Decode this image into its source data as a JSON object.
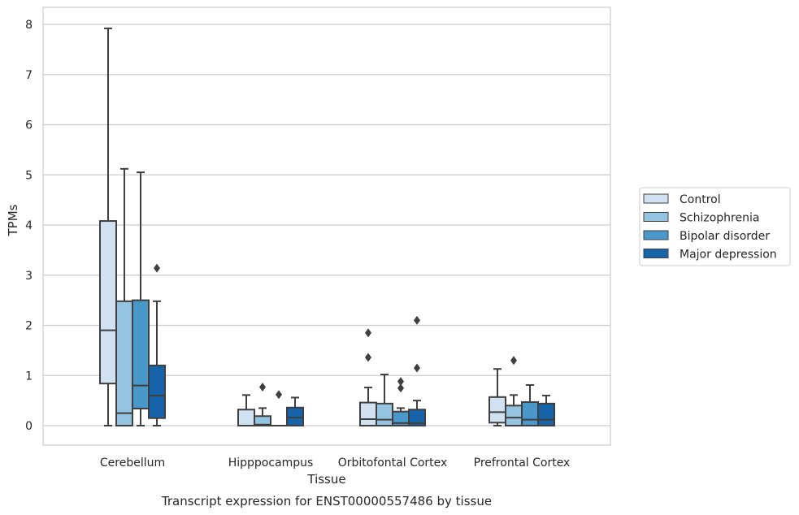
{
  "caption": "Transcript expression for ENST00000557486 by tissue",
  "chart_data": {
    "type": "boxplot",
    "xlabel": "Tissue",
    "ylabel": "TPMs",
    "ylim": [
      -0.4,
      8.3
    ],
    "yticks": [
      0,
      1,
      2,
      3,
      4,
      5,
      6,
      7,
      8
    ],
    "grid": "horizontal",
    "legend_position": "right",
    "categories": [
      "Cerebellum",
      "Hipppocampus",
      "Orbitofontal Cortex",
      "Prefrontal Cortex"
    ],
    "series": [
      {
        "name": "Control",
        "color": "#d0e1f2",
        "boxes": [
          {
            "whislo": 0,
            "q1": 0.84,
            "med": 1.9,
            "q3": 4.08,
            "whishi": 7.92,
            "fliers": []
          },
          {
            "whislo": 0,
            "q1": 0,
            "med": 0,
            "q3": 0.32,
            "whishi": 0.61,
            "fliers": []
          },
          {
            "whislo": 0,
            "q1": 0,
            "med": 0.13,
            "q3": 0.46,
            "whishi": 0.76,
            "fliers": [
              1.36,
              1.85
            ]
          },
          {
            "whislo": 0,
            "q1": 0.06,
            "med": 0.27,
            "q3": 0.57,
            "whishi": 1.13,
            "fliers": []
          }
        ]
      },
      {
        "name": "Schizophrenia",
        "color": "#94c4df",
        "boxes": [
          {
            "whislo": 0,
            "q1": 0,
            "med": 0.25,
            "q3": 2.48,
            "whishi": 5.12,
            "fliers": []
          },
          {
            "whislo": 0,
            "q1": 0,
            "med": 0.02,
            "q3": 0.19,
            "whishi": 0.35,
            "fliers": [
              0.77
            ]
          },
          {
            "whislo": 0,
            "q1": 0,
            "med": 0.12,
            "q3": 0.44,
            "whishi": 1.02,
            "fliers": []
          },
          {
            "whislo": 0,
            "q1": 0,
            "med": 0.16,
            "q3": 0.4,
            "whishi": 0.61,
            "fliers": [
              1.3
            ]
          }
        ]
      },
      {
        "name": "Bipolar disorder",
        "color": "#4a98c9",
        "boxes": [
          {
            "whislo": 0,
            "q1": 0.34,
            "med": 0.8,
            "q3": 2.5,
            "whishi": 5.05,
            "fliers": []
          },
          {
            "whislo": 0,
            "q1": 0,
            "med": 0,
            "q3": 0,
            "whishi": 0,
            "fliers": [
              0.62
            ]
          },
          {
            "whislo": 0,
            "q1": 0,
            "med": 0.05,
            "q3": 0.28,
            "whishi": 0.35,
            "fliers": [
              0.75,
              0.88
            ]
          },
          {
            "whislo": 0,
            "q1": 0,
            "med": 0.12,
            "q3": 0.47,
            "whishi": 0.81,
            "fliers": []
          }
        ]
      },
      {
        "name": "Major depression",
        "color": "#1764ab",
        "boxes": [
          {
            "whislo": 0,
            "q1": 0.15,
            "med": 0.6,
            "q3": 1.2,
            "whishi": 2.48,
            "fliers": [
              3.14
            ]
          },
          {
            "whislo": 0,
            "q1": 0,
            "med": 0.16,
            "q3": 0.36,
            "whishi": 0.56,
            "fliers": []
          },
          {
            "whislo": 0,
            "q1": 0,
            "med": 0.05,
            "q3": 0.32,
            "whishi": 0.5,
            "fliers": [
              1.15,
              2.1
            ]
          },
          {
            "whislo": 0,
            "q1": 0,
            "med": 0.12,
            "q3": 0.44,
            "whishi": 0.6,
            "fliers": []
          }
        ]
      }
    ]
  }
}
